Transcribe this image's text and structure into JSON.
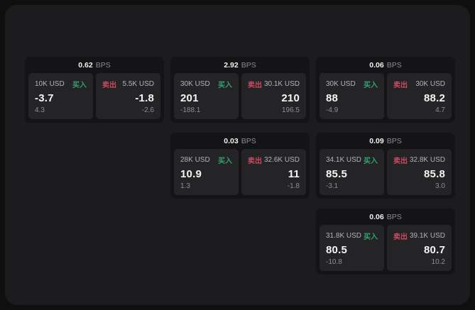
{
  "labels": {
    "bps_suffix": "BPS",
    "buy": "买入",
    "sell": "卖出"
  },
  "colors": {
    "buy": "#36a06e",
    "sell": "#c84b5f",
    "panel_bg": "#1c1c1e",
    "card_bg": "#141416",
    "subpanel_bg": "#242427"
  },
  "cards": [
    {
      "row": 0,
      "col": 0,
      "spread": "0.62",
      "buy": {
        "amount": "10K USD",
        "price": "-3.7",
        "delta": "4.3"
      },
      "sell": {
        "amount": "5.5K USD",
        "price": "-1.8",
        "delta": "-2.6"
      }
    },
    {
      "row": 0,
      "col": 1,
      "spread": "2.92",
      "buy": {
        "amount": "30K USD",
        "price": "201",
        "delta": "-188.1"
      },
      "sell": {
        "amount": "30.1K USD",
        "price": "210",
        "delta": "196.5"
      }
    },
    {
      "row": 0,
      "col": 2,
      "spread": "0.06",
      "buy": {
        "amount": "30K USD",
        "price": "88",
        "delta": "-4.9"
      },
      "sell": {
        "amount": "30K USD",
        "price": "88.2",
        "delta": "4.7"
      }
    },
    {
      "row": 1,
      "col": 1,
      "spread": "0.03",
      "buy": {
        "amount": "28K USD",
        "price": "10.9",
        "delta": "1.3"
      },
      "sell": {
        "amount": "32.6K USD",
        "price": "11",
        "delta": "-1.8"
      }
    },
    {
      "row": 1,
      "col": 2,
      "spread": "0.09",
      "buy": {
        "amount": "34.1K USD",
        "price": "85.5",
        "delta": "-3.1"
      },
      "sell": {
        "amount": "32.8K USD",
        "price": "85.8",
        "delta": "3.0"
      }
    },
    {
      "row": 2,
      "col": 2,
      "spread": "0.06",
      "buy": {
        "amount": "31.8K USD",
        "price": "80.5",
        "delta": "-10.8"
      },
      "sell": {
        "amount": "39.1K USD",
        "price": "80.7",
        "delta": "10.2"
      }
    }
  ]
}
